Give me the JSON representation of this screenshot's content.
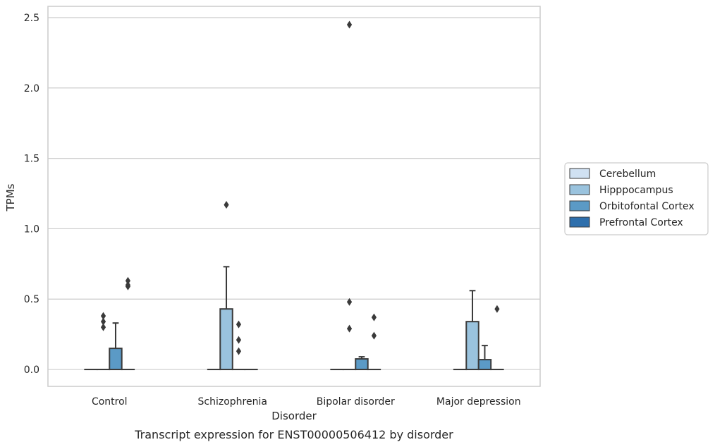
{
  "chart_data": {
    "type": "box",
    "caption": "Transcript expression for ENST00000506412 by disorder",
    "xlabel": "Disorder",
    "ylabel": "TPMs",
    "ylim": [
      -0.12,
      2.58
    ],
    "yticks": [
      0.0,
      0.5,
      1.0,
      1.5,
      2.0,
      2.5
    ],
    "ytick_labels": [
      "0.0",
      "0.5",
      "1.0",
      "1.5",
      "2.0",
      "2.5"
    ],
    "grid": "horizontal",
    "legend_position": "right",
    "categories": [
      "Control",
      "Schizophrenia",
      "Bipolar disorder",
      "Major depression"
    ],
    "series": [
      {
        "name": "Cerebellum",
        "color": "#d0e1f2",
        "boxes": [
          {
            "q1": 0,
            "median": 0,
            "q3": 0,
            "whisker_low": 0,
            "whisker_high": 0,
            "outliers": []
          },
          {
            "q1": 0,
            "median": 0,
            "q3": 0,
            "whisker_low": 0,
            "whisker_high": 0,
            "outliers": []
          },
          {
            "q1": 0,
            "median": 0,
            "q3": 0,
            "whisker_low": 0,
            "whisker_high": 0,
            "outliers": []
          },
          {
            "q1": 0,
            "median": 0,
            "q3": 0,
            "whisker_low": 0,
            "whisker_high": 0,
            "outliers": []
          }
        ]
      },
      {
        "name": "Hipppocampus",
        "color": "#9ac3de",
        "boxes": [
          {
            "q1": 0,
            "median": 0,
            "q3": 0,
            "whisker_low": 0,
            "whisker_high": 0,
            "outliers": [
              0.3,
              0.34,
              0.38
            ]
          },
          {
            "q1": 0,
            "median": 0,
            "q3": 0.43,
            "whisker_low": 0,
            "whisker_high": 0.73,
            "outliers": [
              1.17
            ]
          },
          {
            "q1": 0,
            "median": 0,
            "q3": 0,
            "whisker_low": 0,
            "whisker_high": 0,
            "outliers": [
              0.29,
              0.48,
              2.45
            ]
          },
          {
            "q1": 0,
            "median": 0,
            "q3": 0.34,
            "whisker_low": 0,
            "whisker_high": 0.56,
            "outliers": []
          }
        ]
      },
      {
        "name": "Orbitofontal Cortex",
        "color": "#5b9ac6",
        "boxes": [
          {
            "q1": 0,
            "median": 0,
            "q3": 0.15,
            "whisker_low": 0,
            "whisker_high": 0.33,
            "outliers": []
          },
          {
            "q1": 0,
            "median": 0,
            "q3": 0,
            "whisker_low": 0,
            "whisker_high": 0,
            "outliers": [
              0.13,
              0.21,
              0.32
            ]
          },
          {
            "q1": 0,
            "median": 0,
            "q3": 0.075,
            "whisker_low": 0,
            "whisker_high": 0.09,
            "outliers": []
          },
          {
            "q1": 0,
            "median": 0,
            "q3": 0.07,
            "whisker_low": 0,
            "whisker_high": 0.17,
            "outliers": []
          }
        ]
      },
      {
        "name": "Prefrontal Cortex",
        "color": "#2e6fac",
        "boxes": [
          {
            "q1": 0,
            "median": 0,
            "q3": 0,
            "whisker_low": 0,
            "whisker_high": 0,
            "outliers": [
              0.59,
              0.6,
              0.63
            ]
          },
          {
            "q1": 0,
            "median": 0,
            "q3": 0,
            "whisker_low": 0,
            "whisker_high": 0,
            "outliers": []
          },
          {
            "q1": 0,
            "median": 0,
            "q3": 0,
            "whisker_low": 0,
            "whisker_high": 0,
            "outliers": [
              0.24,
              0.37
            ]
          },
          {
            "q1": 0,
            "median": 0,
            "q3": 0,
            "whisker_low": 0,
            "whisker_high": 0,
            "outliers": [
              0.43
            ]
          }
        ]
      }
    ]
  }
}
